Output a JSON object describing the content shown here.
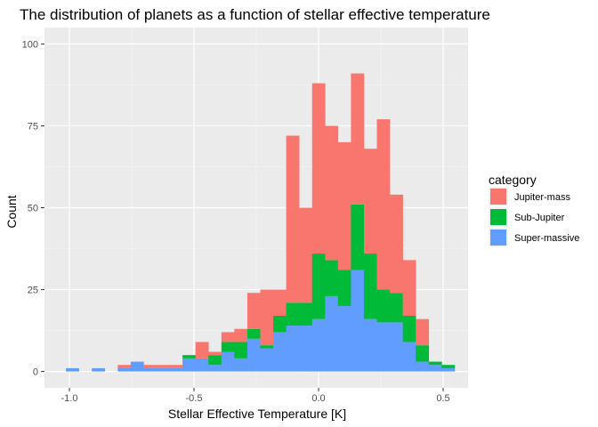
{
  "chart_data": {
    "type": "bar",
    "stacked": true,
    "title": "The distribution of planets as a function of stellar effective temperature",
    "xlabel": "Stellar Effective Temperature [K]",
    "ylabel": "Count",
    "xlim": [
      -1.1,
      0.6
    ],
    "ylim": [
      -5,
      105
    ],
    "x_ticks": [
      -1.0,
      -0.5,
      0.0,
      0.5
    ],
    "x_tick_labels": [
      "-1.0",
      "-0.5",
      "0.0",
      "0.5"
    ],
    "y_ticks": [
      0,
      25,
      50,
      75,
      100
    ],
    "y_tick_labels": [
      "0",
      "25",
      "50",
      "75",
      "100"
    ],
    "bin_width": 0.052,
    "grid": true,
    "legend": {
      "title": "category",
      "position": "right"
    },
    "x": [
      -0.988,
      -0.884,
      -0.78,
      -0.728,
      -0.676,
      -0.624,
      -0.572,
      -0.52,
      -0.468,
      -0.416,
      -0.364,
      -0.312,
      -0.26,
      -0.208,
      -0.156,
      -0.104,
      -0.052,
      0.0,
      0.052,
      0.104,
      0.156,
      0.208,
      0.26,
      0.312,
      0.364,
      0.416,
      0.468,
      0.52
    ],
    "series": [
      {
        "name": "Super-massive",
        "color": "#619CFF",
        "values": [
          1,
          1,
          1,
          3,
          1,
          1,
          1,
          4,
          4,
          2,
          6,
          4,
          10,
          7,
          12,
          14,
          14,
          16,
          23,
          20,
          31,
          16,
          15,
          15,
          9,
          3,
          2,
          1
        ]
      },
      {
        "name": "Sub-Jupiter",
        "color": "#00BA38",
        "values": [
          0,
          0,
          0,
          0,
          0,
          0,
          0,
          1,
          0,
          3,
          3,
          5,
          3,
          1,
          5,
          7,
          7,
          20,
          11,
          11,
          20,
          20,
          10,
          9,
          8,
          5,
          1,
          1
        ]
      },
      {
        "name": "Jupiter-mass",
        "color": "#F8766D",
        "values": [
          0,
          0,
          1,
          0,
          1,
          1,
          1,
          0,
          5,
          1,
          3,
          4,
          11,
          17,
          8,
          51,
          29,
          52,
          41,
          39,
          40,
          32,
          52,
          30,
          17,
          8,
          0,
          0
        ]
      }
    ],
    "legend_order": [
      "Jupiter-mass",
      "Sub-Jupiter",
      "Super-massive"
    ]
  }
}
